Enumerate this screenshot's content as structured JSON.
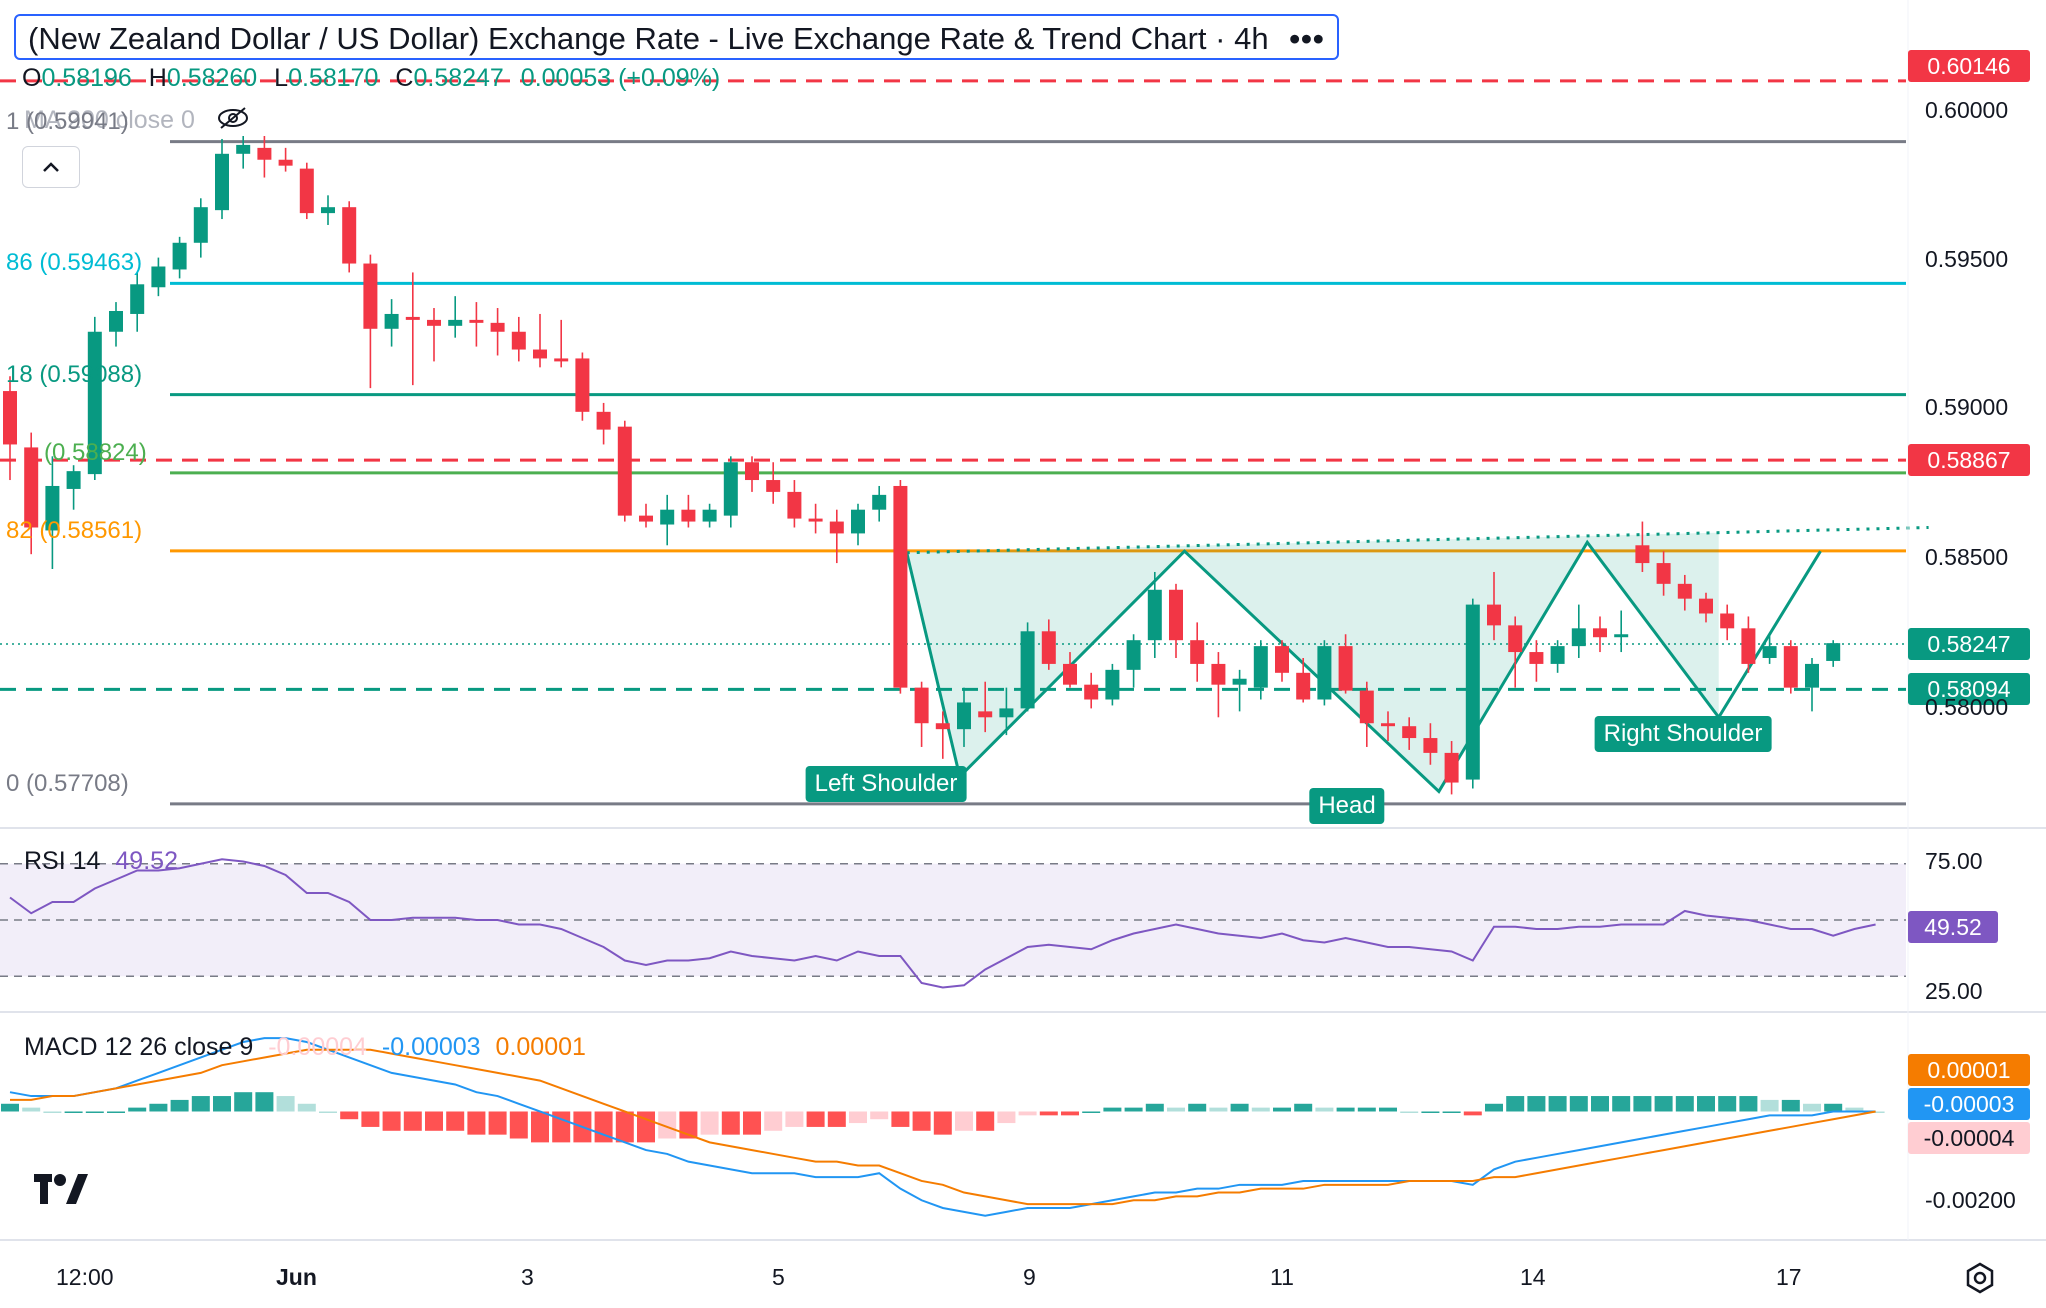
{
  "header": {
    "title": "(New Zealand Dollar / US Dollar) Exchange Rate - Live Exchange Rate & Trend Chart · 4h",
    "menu_icon": "ellipsis-icon",
    "ohlc": {
      "o_label": "O",
      "o": "0.58196",
      "h_label": "H",
      "h": "0.58260",
      "l_label": "L",
      "l": "0.58170",
      "c_label": "C",
      "c": "0.58247",
      "change": "0.00053 (+0.09%)"
    },
    "ma_label": "MA 200 close 0"
  },
  "colors": {
    "up": "#089981",
    "down": "#f23645",
    "rsi": "#7e57c2",
    "macd": "#2196f3",
    "signal": "#f57c00",
    "pattern": "#089981",
    "resistance": "#f23645"
  },
  "chart_data": {
    "type": "candlestick",
    "symbol": "NZD/USD",
    "interval": "4h",
    "x_ticks": [
      "12:00",
      "Jun",
      "3",
      "5",
      "9",
      "11",
      "14",
      "17"
    ],
    "ylim": [
      0.5762,
      0.6025
    ],
    "y_ticks": [
      "0.60000",
      "0.59500",
      "0.59000",
      "0.58500",
      "0.58000"
    ],
    "candles": [
      {
        "o": 0.591,
        "h": 0.5915,
        "l": 0.588,
        "c": 0.5892
      },
      {
        "o": 0.5891,
        "h": 0.5896,
        "l": 0.5855,
        "c": 0.5864
      },
      {
        "o": 0.5863,
        "h": 0.5888,
        "l": 0.585,
        "c": 0.5878
      },
      {
        "o": 0.5877,
        "h": 0.5885,
        "l": 0.587,
        "c": 0.5883
      },
      {
        "o": 0.5882,
        "h": 0.5935,
        "l": 0.588,
        "c": 0.593
      },
      {
        "o": 0.593,
        "h": 0.594,
        "l": 0.5925,
        "c": 0.5937
      },
      {
        "o": 0.5936,
        "h": 0.595,
        "l": 0.593,
        "c": 0.5946
      },
      {
        "o": 0.5945,
        "h": 0.5955,
        "l": 0.5942,
        "c": 0.5952
      },
      {
        "o": 0.5951,
        "h": 0.5962,
        "l": 0.5948,
        "c": 0.596
      },
      {
        "o": 0.596,
        "h": 0.5975,
        "l": 0.5955,
        "c": 0.5972
      },
      {
        "o": 0.5971,
        "h": 0.5995,
        "l": 0.5968,
        "c": 0.599
      },
      {
        "o": 0.599,
        "h": 0.5996,
        "l": 0.5985,
        "c": 0.5993
      },
      {
        "o": 0.5992,
        "h": 0.5996,
        "l": 0.5982,
        "c": 0.5988
      },
      {
        "o": 0.5988,
        "h": 0.5992,
        "l": 0.5984,
        "c": 0.5986
      },
      {
        "o": 0.5985,
        "h": 0.5987,
        "l": 0.5968,
        "c": 0.597
      },
      {
        "o": 0.597,
        "h": 0.5976,
        "l": 0.5966,
        "c": 0.5972
      },
      {
        "o": 0.5972,
        "h": 0.5974,
        "l": 0.595,
        "c": 0.5953
      },
      {
        "o": 0.5953,
        "h": 0.5956,
        "l": 0.5911,
        "c": 0.5931
      },
      {
        "o": 0.5931,
        "h": 0.5941,
        "l": 0.5925,
        "c": 0.5936
      },
      {
        "o": 0.5935,
        "h": 0.595,
        "l": 0.5912,
        "c": 0.5934
      },
      {
        "o": 0.5934,
        "h": 0.5938,
        "l": 0.592,
        "c": 0.5932
      },
      {
        "o": 0.5932,
        "h": 0.5942,
        "l": 0.5928,
        "c": 0.5934
      },
      {
        "o": 0.5934,
        "h": 0.594,
        "l": 0.5925,
        "c": 0.5933
      },
      {
        "o": 0.5933,
        "h": 0.5938,
        "l": 0.5922,
        "c": 0.593
      },
      {
        "o": 0.593,
        "h": 0.5935,
        "l": 0.592,
        "c": 0.5924
      },
      {
        "o": 0.5924,
        "h": 0.5936,
        "l": 0.5918,
        "c": 0.5921
      },
      {
        "o": 0.5921,
        "h": 0.5934,
        "l": 0.5918,
        "c": 0.592
      },
      {
        "o": 0.5921,
        "h": 0.5923,
        "l": 0.59,
        "c": 0.5903
      },
      {
        "o": 0.5903,
        "h": 0.5906,
        "l": 0.5892,
        "c": 0.5897
      },
      {
        "o": 0.5898,
        "h": 0.59,
        "l": 0.5866,
        "c": 0.5868
      },
      {
        "o": 0.5868,
        "h": 0.5872,
        "l": 0.5864,
        "c": 0.5866
      },
      {
        "o": 0.5865,
        "h": 0.5875,
        "l": 0.5858,
        "c": 0.587
      },
      {
        "o": 0.587,
        "h": 0.5875,
        "l": 0.5864,
        "c": 0.5866
      },
      {
        "o": 0.5866,
        "h": 0.5872,
        "l": 0.5864,
        "c": 0.587
      },
      {
        "o": 0.5868,
        "h": 0.5888,
        "l": 0.5864,
        "c": 0.5886
      },
      {
        "o": 0.5886,
        "h": 0.5888,
        "l": 0.5876,
        "c": 0.588
      },
      {
        "o": 0.588,
        "h": 0.5886,
        "l": 0.5872,
        "c": 0.5876
      },
      {
        "o": 0.5876,
        "h": 0.588,
        "l": 0.5864,
        "c": 0.5867
      },
      {
        "o": 0.5867,
        "h": 0.5872,
        "l": 0.5862,
        "c": 0.5866
      },
      {
        "o": 0.5866,
        "h": 0.587,
        "l": 0.5852,
        "c": 0.5862
      },
      {
        "o": 0.5862,
        "h": 0.5872,
        "l": 0.5858,
        "c": 0.587
      },
      {
        "o": 0.587,
        "h": 0.5878,
        "l": 0.5866,
        "c": 0.5875
      },
      {
        "o": 0.5878,
        "h": 0.588,
        "l": 0.5808,
        "c": 0.581
      },
      {
        "o": 0.581,
        "h": 0.5812,
        "l": 0.579,
        "c": 0.5798
      },
      {
        "o": 0.5798,
        "h": 0.5802,
        "l": 0.5786,
        "c": 0.5796
      },
      {
        "o": 0.5796,
        "h": 0.581,
        "l": 0.579,
        "c": 0.5805
      },
      {
        "o": 0.5802,
        "h": 0.5812,
        "l": 0.5795,
        "c": 0.58
      },
      {
        "o": 0.58,
        "h": 0.581,
        "l": 0.5794,
        "c": 0.5803
      },
      {
        "o": 0.5803,
        "h": 0.5832,
        "l": 0.5802,
        "c": 0.5829
      },
      {
        "o": 0.5829,
        "h": 0.5833,
        "l": 0.5816,
        "c": 0.5818
      },
      {
        "o": 0.5818,
        "h": 0.5822,
        "l": 0.581,
        "c": 0.5811
      },
      {
        "o": 0.5811,
        "h": 0.5815,
        "l": 0.5803,
        "c": 0.5806
      },
      {
        "o": 0.5806,
        "h": 0.5818,
        "l": 0.5804,
        "c": 0.5816
      },
      {
        "o": 0.5816,
        "h": 0.5828,
        "l": 0.581,
        "c": 0.5826
      },
      {
        "o": 0.5826,
        "h": 0.5849,
        "l": 0.582,
        "c": 0.5843
      },
      {
        "o": 0.5843,
        "h": 0.5845,
        "l": 0.582,
        "c": 0.5826
      },
      {
        "o": 0.5826,
        "h": 0.5832,
        "l": 0.5812,
        "c": 0.5818
      },
      {
        "o": 0.5818,
        "h": 0.5822,
        "l": 0.58,
        "c": 0.5811
      },
      {
        "o": 0.5811,
        "h": 0.5816,
        "l": 0.5802,
        "c": 0.5813
      },
      {
        "o": 0.581,
        "h": 0.5826,
        "l": 0.5806,
        "c": 0.5824
      },
      {
        "o": 0.5824,
        "h": 0.5826,
        "l": 0.5812,
        "c": 0.5815
      },
      {
        "o": 0.5815,
        "h": 0.582,
        "l": 0.5805,
        "c": 0.5806
      },
      {
        "o": 0.5806,
        "h": 0.5826,
        "l": 0.5804,
        "c": 0.5824
      },
      {
        "o": 0.5824,
        "h": 0.5828,
        "l": 0.5808,
        "c": 0.5809
      },
      {
        "o": 0.5809,
        "h": 0.5812,
        "l": 0.579,
        "c": 0.5798
      },
      {
        "o": 0.5798,
        "h": 0.5802,
        "l": 0.5792,
        "c": 0.5797
      },
      {
        "o": 0.5797,
        "h": 0.58,
        "l": 0.5789,
        "c": 0.5793
      },
      {
        "o": 0.5793,
        "h": 0.5798,
        "l": 0.5784,
        "c": 0.5788
      },
      {
        "o": 0.5788,
        "h": 0.5792,
        "l": 0.5774,
        "c": 0.5778
      },
      {
        "o": 0.5779,
        "h": 0.584,
        "l": 0.5776,
        "c": 0.5838
      },
      {
        "o": 0.5838,
        "h": 0.5849,
        "l": 0.5826,
        "c": 0.5831
      },
      {
        "o": 0.5831,
        "h": 0.5834,
        "l": 0.581,
        "c": 0.5822
      },
      {
        "o": 0.5822,
        "h": 0.5826,
        "l": 0.5812,
        "c": 0.5818
      },
      {
        "o": 0.5818,
        "h": 0.5826,
        "l": 0.5815,
        "c": 0.5824
      },
      {
        "o": 0.5824,
        "h": 0.5838,
        "l": 0.582,
        "c": 0.583
      },
      {
        "o": 0.583,
        "h": 0.5834,
        "l": 0.5822,
        "c": 0.5827
      },
      {
        "o": 0.5827,
        "h": 0.5836,
        "l": 0.5822,
        "c": 0.5828
      },
      {
        "o": 0.5858,
        "h": 0.5866,
        "l": 0.5849,
        "c": 0.5852
      },
      {
        "o": 0.5852,
        "h": 0.5856,
        "l": 0.5841,
        "c": 0.5845
      },
      {
        "o": 0.5845,
        "h": 0.5848,
        "l": 0.5836,
        "c": 0.584
      },
      {
        "o": 0.584,
        "h": 0.5842,
        "l": 0.5832,
        "c": 0.5835
      },
      {
        "o": 0.5835,
        "h": 0.5838,
        "l": 0.5826,
        "c": 0.583
      },
      {
        "o": 0.583,
        "h": 0.5834,
        "l": 0.5815,
        "c": 0.5818
      },
      {
        "o": 0.582,
        "h": 0.5828,
        "l": 0.5818,
        "c": 0.5824
      },
      {
        "o": 0.5824,
        "h": 0.5826,
        "l": 0.5808,
        "c": 0.581
      },
      {
        "o": 0.581,
        "h": 0.582,
        "l": 0.5802,
        "c": 0.5818
      },
      {
        "o": 0.5819,
        "h": 0.5826,
        "l": 0.5817,
        "c": 0.5825
      }
    ],
    "fib_levels": [
      {
        "label": "1 (0.59941)",
        "value": 0.59941,
        "color": "#787b86"
      },
      {
        "label": "86 (0.59463)",
        "value": 0.59463,
        "color": "#00bcd4"
      },
      {
        "label": "18 (0.59088)",
        "value": 0.59088,
        "color": "#089981"
      },
      {
        "label": "(0.58824)",
        "value": 0.58824,
        "color": "#4caf50"
      },
      {
        "label": "82 (0.58561)",
        "value": 0.58561,
        "color": "#ff9800"
      },
      {
        "label": "0 (0.57708)",
        "value": 0.57708,
        "color": "#787b86"
      }
    ],
    "horizontal_levels": [
      {
        "label": "0.60146",
        "value": 0.60146,
        "style": "dashed",
        "color": "#f23645"
      },
      {
        "label": "0.58867",
        "value": 0.58867,
        "style": "dashed",
        "color": "#f23645"
      },
      {
        "label": "0.58094",
        "value": 0.58094,
        "style": "dashed",
        "color": "#089981"
      }
    ],
    "last_price": {
      "label": "0.58247",
      "value": 0.58247
    },
    "pattern": {
      "name": "inverse head and shoulders",
      "labels": {
        "left_shoulder": "Left Shoulder",
        "head": "Head",
        "right_shoulder": "Right Shoulder"
      },
      "points": [
        {
          "i": 42.3,
          "v": 0.58555
        },
        {
          "i": 44.8,
          "v": 0.578
        },
        {
          "i": 55.4,
          "v": 0.5856
        },
        {
          "i": 67.4,
          "v": 0.5775
        },
        {
          "i": 74.4,
          "v": 0.5859
        },
        {
          "i": 80.6,
          "v": 0.58
        },
        {
          "i": 85.4,
          "v": 0.5856
        }
      ],
      "neckline": [
        {
          "i": 42.3,
          "v": 0.58555
        },
        {
          "i": 90.5,
          "v": 0.5864
        }
      ]
    },
    "rsi": {
      "label": "RSI",
      "length": "14",
      "value": "49.52",
      "levels": [
        "75.00",
        "25.00"
      ],
      "ylim": [
        10,
        90
      ],
      "values": [
        60,
        53,
        58,
        58,
        64,
        68,
        72,
        72,
        73,
        75,
        77,
        76,
        74,
        70,
        62,
        62,
        58,
        50,
        50,
        51,
        51,
        51,
        50,
        50,
        48,
        48,
        46,
        42,
        38,
        32,
        30,
        32,
        32,
        33,
        36,
        34,
        33,
        32,
        34,
        32,
        36,
        34,
        34,
        22,
        20,
        21,
        28,
        33,
        38,
        39,
        38,
        37,
        41,
        44,
        46,
        48,
        46,
        44,
        43,
        42,
        44,
        41,
        40,
        42,
        40,
        38,
        38,
        37,
        36,
        32,
        47,
        47,
        46,
        46,
        47,
        47,
        48,
        48,
        48,
        54,
        52,
        51,
        50,
        48,
        46,
        46,
        43,
        46,
        48
      ]
    },
    "macd": {
      "label": "MACD",
      "params": "12 26 close 9",
      "hist_value": "-0.00004",
      "macd_value": "-0.00003",
      "signal_value": "0.00001",
      "tick_label": "-0.00200",
      "ylim": [
        -0.0032,
        0.0025
      ],
      "macd": [
        0.0005,
        0.0004,
        0.0004,
        0.0004,
        0.0005,
        0.0006,
        0.0008,
        0.001,
        0.0012,
        0.0014,
        0.0016,
        0.0018,
        0.0019,
        0.0019,
        0.0018,
        0.0016,
        0.0014,
        0.0012,
        0.001,
        0.0009,
        0.0008,
        0.0007,
        0.0005,
        0.0004,
        0.0002,
        0.0,
        -0.0002,
        -0.0004,
        -0.0006,
        -0.0008,
        -0.001,
        -0.0011,
        -0.0013,
        -0.0014,
        -0.0015,
        -0.0016,
        -0.0016,
        -0.0016,
        -0.0017,
        -0.0017,
        -0.0017,
        -0.0016,
        -0.002,
        -0.0023,
        -0.0025,
        -0.0026,
        -0.0027,
        -0.0026,
        -0.0025,
        -0.0025,
        -0.0025,
        -0.0024,
        -0.0023,
        -0.0022,
        -0.0021,
        -0.0021,
        -0.002,
        -0.002,
        -0.0019,
        -0.0019,
        -0.0019,
        -0.0018,
        -0.0018,
        -0.0018,
        -0.0018,
        -0.0018,
        -0.0018,
        -0.0018,
        -0.0018,
        -0.0019,
        -0.0015,
        -0.0013,
        -0.0012,
        -0.0011,
        -0.001,
        -0.0009,
        -0.0008,
        -0.0007,
        -0.0006,
        -0.0005,
        -0.0004,
        -0.0003,
        -0.0002,
        -0.0001,
        -0.0001,
        -0.0001,
        -0.0,
        -0.0,
        -0.0
      ],
      "signal": [
        0.0003,
        0.0003,
        0.0004,
        0.0004,
        0.0005,
        0.0006,
        0.0007,
        0.0008,
        0.0009,
        0.001,
        0.0012,
        0.0013,
        0.0014,
        0.0015,
        0.0016,
        0.0016,
        0.0016,
        0.0016,
        0.0015,
        0.0014,
        0.0013,
        0.0012,
        0.0011,
        0.001,
        0.0009,
        0.0008,
        0.0006,
        0.0004,
        0.0002,
        0.0,
        -0.0002,
        -0.0004,
        -0.0006,
        -0.0008,
        -0.0009,
        -0.001,
        -0.0011,
        -0.0012,
        -0.0013,
        -0.0013,
        -0.0014,
        -0.0014,
        -0.0016,
        -0.0018,
        -0.0019,
        -0.0021,
        -0.0022,
        -0.0023,
        -0.0024,
        -0.0024,
        -0.0024,
        -0.0024,
        -0.0024,
        -0.0023,
        -0.0023,
        -0.0022,
        -0.0022,
        -0.0021,
        -0.0021,
        -0.002,
        -0.002,
        -0.002,
        -0.0019,
        -0.0019,
        -0.0019,
        -0.0019,
        -0.0018,
        -0.0018,
        -0.0018,
        -0.0018,
        -0.0017,
        -0.0017,
        -0.0016,
        -0.0015,
        -0.0014,
        -0.0013,
        -0.0012,
        -0.0011,
        -0.001,
        -0.0009,
        -0.0008,
        -0.0007,
        -0.0006,
        -0.0005,
        -0.0004,
        -0.0003,
        -0.0002,
        -0.0001,
        0.0
      ],
      "histogram": [
        0.0002,
        0.0001,
        0.0,
        0.0,
        0.0,
        0.0,
        0.0001,
        0.0002,
        0.0003,
        0.0004,
        0.0004,
        0.0005,
        0.0005,
        0.0004,
        0.0002,
        0.0,
        -0.0002,
        -0.0004,
        -0.0005,
        -0.0005,
        -0.0005,
        -0.0005,
        -0.0006,
        -0.0006,
        -0.0007,
        -0.0008,
        -0.0008,
        -0.0008,
        -0.0008,
        -0.0008,
        -0.0008,
        -0.0007,
        -0.0007,
        -0.0006,
        -0.0006,
        -0.0006,
        -0.0005,
        -0.0004,
        -0.0004,
        -0.0004,
        -0.0003,
        -0.0002,
        -0.0004,
        -0.0005,
        -0.0006,
        -0.0005,
        -0.0005,
        -0.0003,
        -0.0001,
        -0.0001,
        -0.0001,
        0.0,
        0.0001,
        0.0001,
        0.0002,
        0.0001,
        0.0002,
        0.0001,
        0.0002,
        0.0001,
        0.0001,
        0.0002,
        0.0001,
        0.0001,
        0.0001,
        0.0001,
        0.0,
        0.0,
        0.0,
        -0.0001,
        0.0002,
        0.0004,
        0.0004,
        0.0004,
        0.0004,
        0.0004,
        0.0004,
        0.0004,
        0.0004,
        0.0004,
        0.0004,
        0.0004,
        0.0004,
        0.0003,
        0.0003,
        0.0002,
        0.0002,
        0.0001,
        0.0
      ]
    }
  }
}
